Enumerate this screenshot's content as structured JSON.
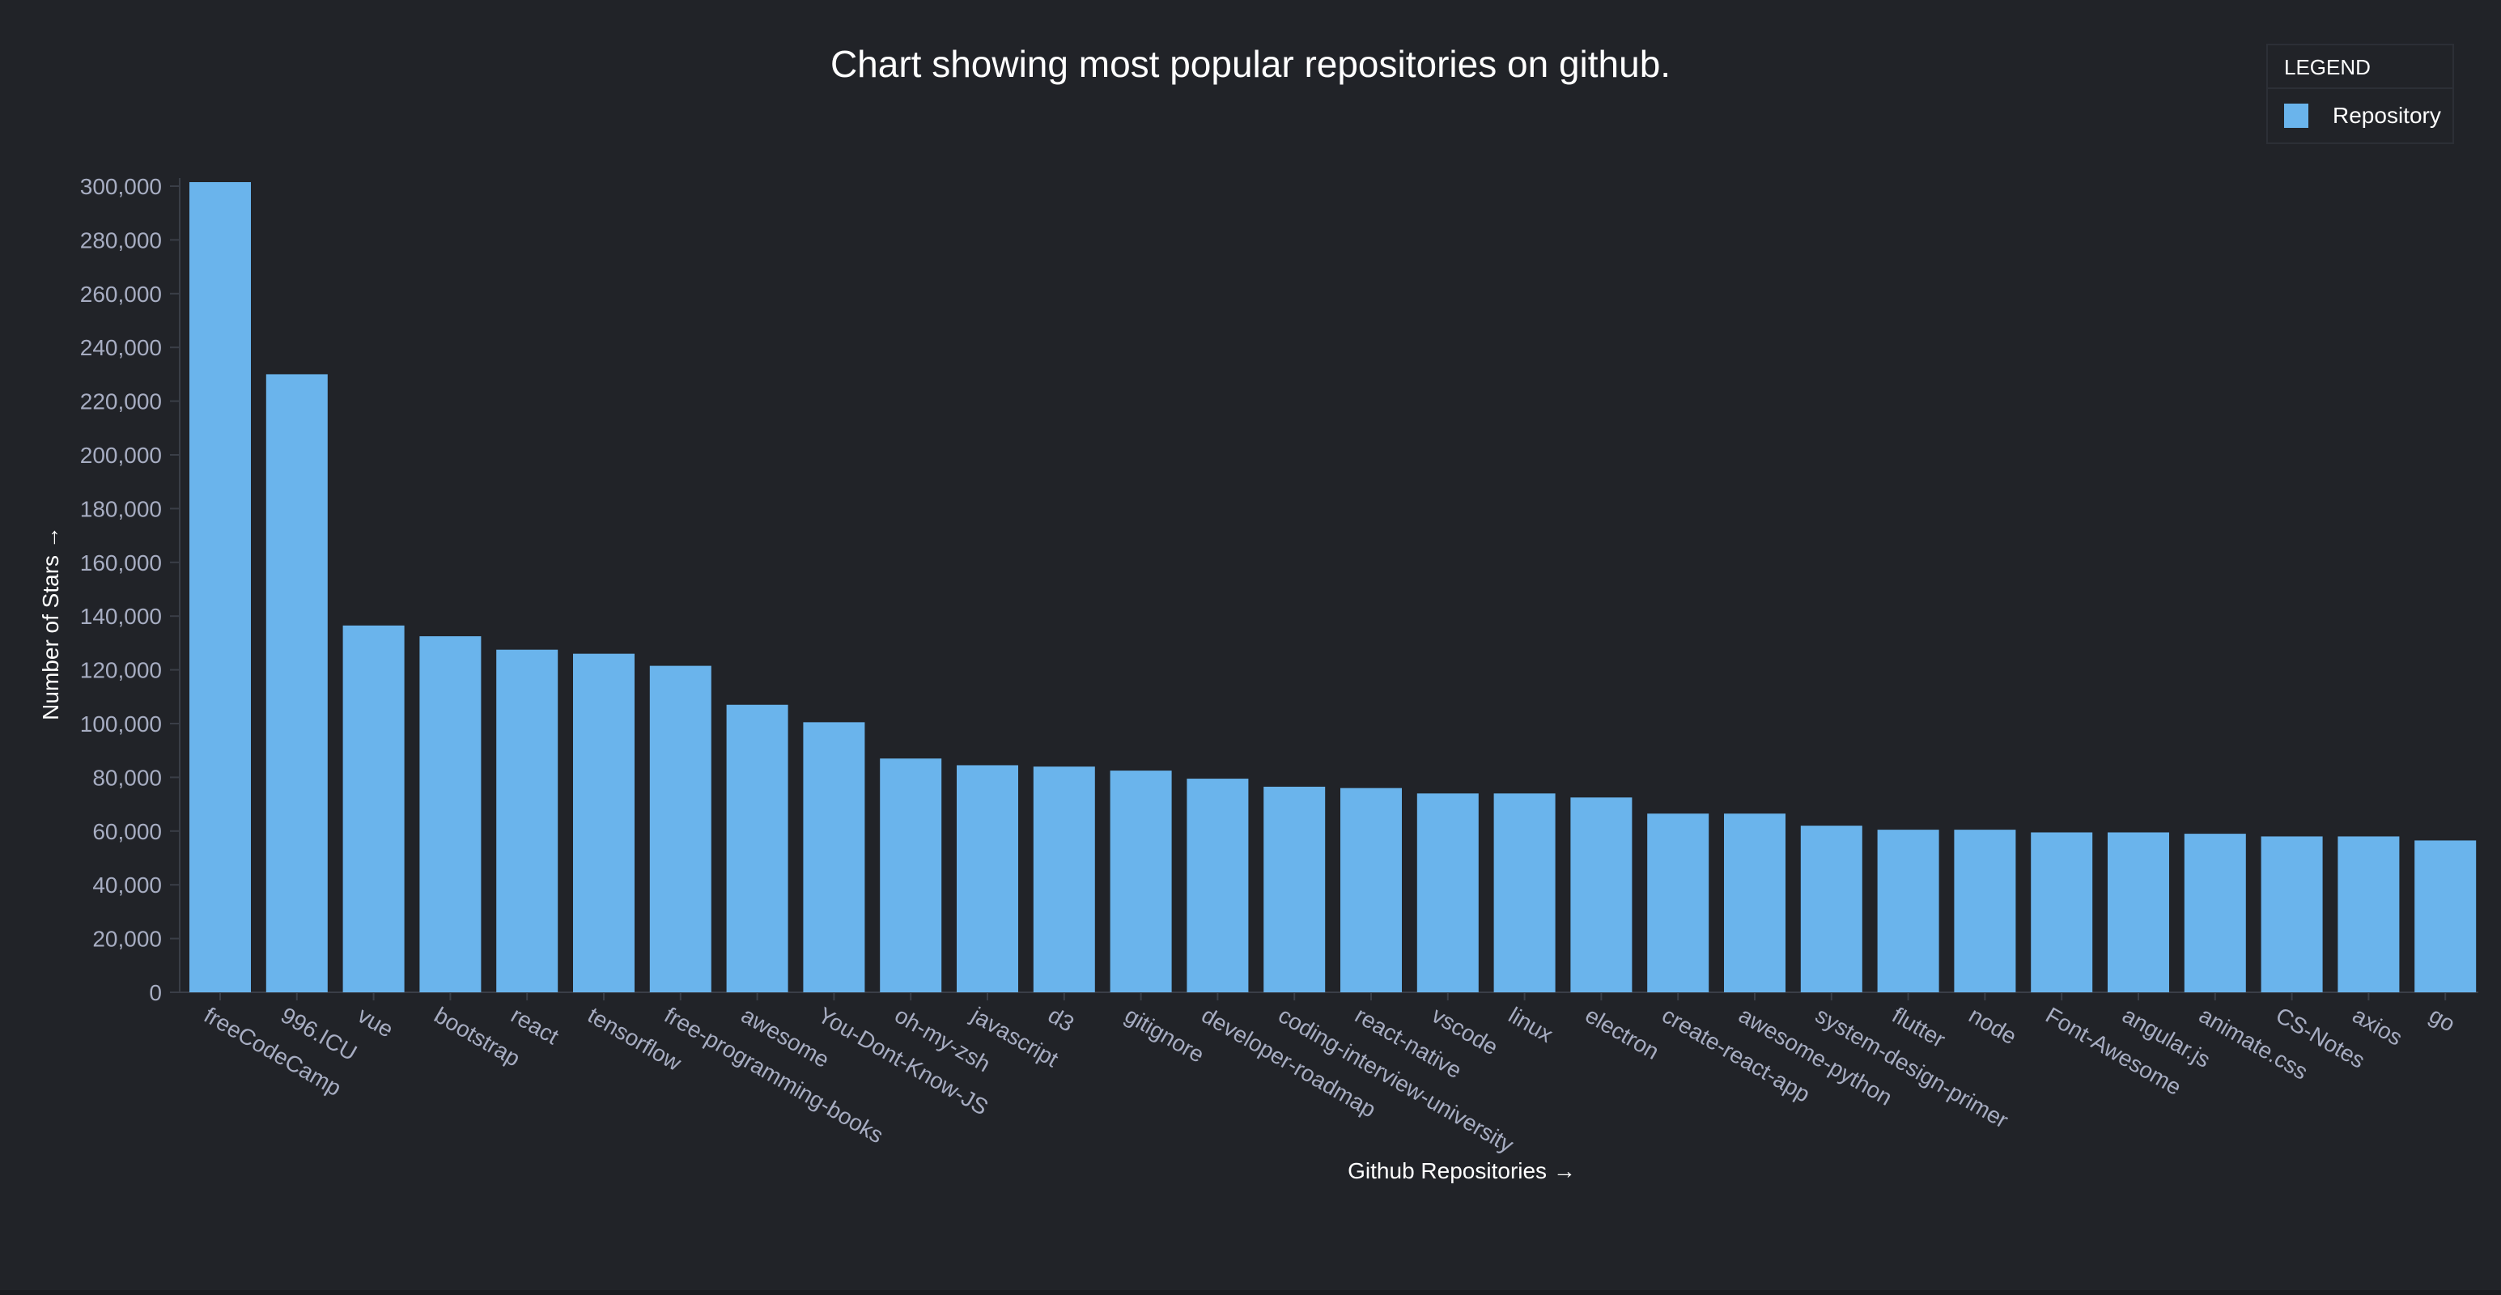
{
  "chart_data": {
    "type": "bar",
    "title": "Chart showing most popular repositories on github.",
    "xlabel": "Github Repositories →",
    "ylabel": "Number of Stars →",
    "ylim": [
      0,
      300000
    ],
    "yticks": [
      "0",
      "20,000",
      "40,000",
      "60,000",
      "80,000",
      "100,000",
      "120,000",
      "140,000",
      "160,000",
      "180,000",
      "200,000",
      "220,000",
      "240,000",
      "260,000",
      "280,000",
      "300,000"
    ],
    "ytick_values": [
      0,
      20000,
      40000,
      60000,
      80000,
      100000,
      120000,
      140000,
      160000,
      180000,
      200000,
      220000,
      240000,
      260000,
      280000,
      300000
    ],
    "categories": [
      "freeCodeCamp",
      "996.ICU",
      "vue",
      "bootstrap",
      "react",
      "tensorflow",
      "free-programming-books",
      "awesome",
      "You-Dont-Know-JS",
      "oh-my-zsh",
      "javascript",
      "d3",
      "gitignore",
      "developer-roadmap",
      "coding-interview-university",
      "react-native",
      "vscode",
      "linux",
      "electron",
      "create-react-app",
      "awesome-python",
      "system-design-primer",
      "flutter",
      "node",
      "Font-Awesome",
      "angular.js",
      "animate.css",
      "CS-Notes",
      "axios",
      "go"
    ],
    "series": [
      {
        "name": "Repository",
        "color": "#6ab4ec",
        "values": [
          301500,
          230000,
          136500,
          132500,
          127500,
          126000,
          121500,
          107000,
          100500,
          87000,
          84500,
          84000,
          82500,
          79500,
          76500,
          76000,
          74000,
          74000,
          72500,
          66500,
          66500,
          62000,
          60500,
          60500,
          59500,
          59500,
          59000,
          58000,
          58000,
          56500
        ]
      }
    ],
    "grid": false,
    "legend": {
      "title": "LEGEND",
      "placement": "top-right"
    },
    "colors": {
      "background": "#212328",
      "bar": "#6ab4ec",
      "text": "#ffffff",
      "tick_text": "#a7adc2",
      "axis_line": "#3a3e47"
    }
  }
}
